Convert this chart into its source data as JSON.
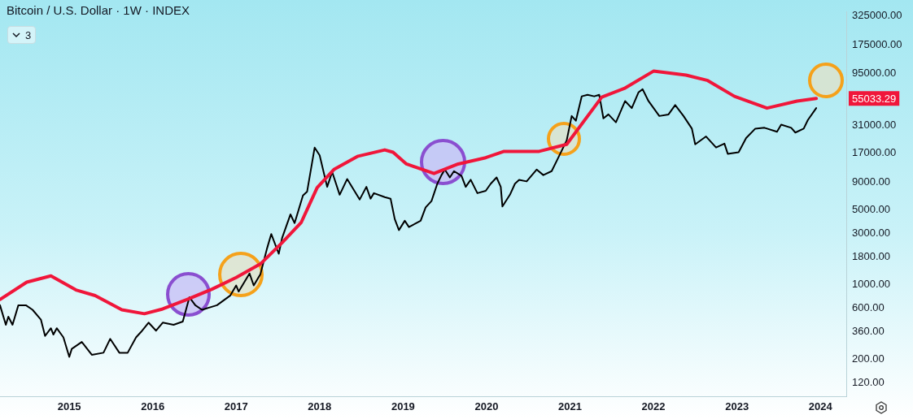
{
  "chart_data": {
    "type": "line",
    "title": "Bitcoin / U.S. Dollar · 1W · INDEX",
    "log": "y",
    "legend": false,
    "marker": "none",
    "line_style": "solid",
    "xlim": [
      2014.17,
      2024.31
    ],
    "xticks": [
      2015,
      2016,
      2017,
      2018,
      2019,
      2020,
      2021,
      2022,
      2023,
      2024
    ],
    "ylim": [
      90,
      355000
    ],
    "yticks": [
      {
        "value": 120,
        "label": "120.00"
      },
      {
        "value": 200,
        "label": "200.00"
      },
      {
        "value": 360,
        "label": "360.00"
      },
      {
        "value": 600,
        "label": "600.00"
      },
      {
        "value": 1000,
        "label": "1000.00"
      },
      {
        "value": 1800,
        "label": "1800.00"
      },
      {
        "value": 3000,
        "label": "3000.00"
      },
      {
        "value": 5000,
        "label": "5000.00"
      },
      {
        "value": 9000,
        "label": "9000.00"
      },
      {
        "value": 17000,
        "label": "17000.00"
      },
      {
        "value": 31000,
        "label": "31000.00"
      },
      {
        "value": 95000,
        "label": "95000.00"
      },
      {
        "value": 175000,
        "label": "175000.00"
      },
      {
        "value": 325000,
        "label": "325000.00"
      }
    ],
    "annotations": [
      "3",
      "55033.29"
    ],
    "series": [
      {
        "color": "#000000",
        "x": [
          2014.17,
          2014.24,
          2014.27,
          2014.32,
          2014.39,
          2014.48,
          2014.56,
          2014.66,
          2014.71,
          2014.78,
          2014.81,
          2014.85,
          2014.93,
          2015.0,
          2015.03,
          2015.15,
          2015.27,
          2015.41,
          2015.49,
          2015.6,
          2015.7,
          2015.8,
          2015.86,
          2015.95,
          2016.04,
          2016.12,
          2016.25,
          2016.36,
          2016.44,
          2016.51,
          2016.59,
          2016.77,
          2016.93,
          2017.0,
          2017.03,
          2017.16,
          2017.21,
          2017.29,
          2017.37,
          2017.42,
          2017.51,
          2017.55,
          2017.65,
          2017.7,
          2017.8,
          2017.85,
          2017.94,
          2018.0,
          2018.09,
          2018.15,
          2018.24,
          2018.33,
          2018.48,
          2018.56,
          2018.61,
          2018.65,
          2018.78,
          2018.85,
          2018.9,
          2018.95,
          2019.02,
          2019.07,
          2019.21,
          2019.27,
          2019.34,
          2019.41,
          2019.46,
          2019.5,
          2019.56,
          2019.61,
          2019.7,
          2019.75,
          2019.81,
          2019.89,
          2019.99,
          2020.05,
          2020.12,
          2020.17,
          2020.19,
          2020.28,
          2020.34,
          2020.39,
          2020.48,
          2020.6,
          2020.68,
          2020.78,
          2020.85,
          2020.96,
          2021.02,
          2021.07,
          2021.14,
          2021.21,
          2021.29,
          2021.35,
          2021.4,
          2021.46,
          2021.55,
          2021.66,
          2021.74,
          2021.82,
          2021.87,
          2021.94,
          2022.07,
          2022.18,
          2022.26,
          2022.36,
          2022.46,
          2022.5,
          2022.63,
          2022.75,
          2022.85,
          2022.89,
          2023.02,
          2023.11,
          2023.22,
          2023.33,
          2023.48,
          2023.53,
          2023.65,
          2023.7,
          2023.8,
          2023.85,
          2023.95
        ],
        "values": [
          640,
          420,
          500,
          420,
          640,
          640,
          580,
          470,
          330,
          390,
          340,
          390,
          320,
          210,
          250,
          290,
          220,
          230,
          310,
          230,
          230,
          320,
          360,
          440,
          370,
          440,
          420,
          450,
          760,
          640,
          580,
          640,
          790,
          980,
          860,
          1270,
          980,
          1250,
          2180,
          2970,
          1940,
          2720,
          4530,
          3760,
          6810,
          7410,
          19100,
          16200,
          8200,
          11300,
          6920,
          9720,
          6250,
          8200,
          6360,
          7160,
          6580,
          6360,
          4090,
          3230,
          3950,
          3450,
          3950,
          5270,
          6040,
          8780,
          10570,
          11910,
          10050,
          11510,
          10400,
          8200,
          9550,
          7160,
          7530,
          8780,
          10050,
          8200,
          5370,
          6920,
          8780,
          9550,
          9230,
          11910,
          10570,
          11510,
          14860,
          22340,
          37760,
          34120,
          57680,
          59700,
          57680,
          59700,
          35910,
          39080,
          32970,
          52120,
          44770,
          62810,
          67300,
          52120,
          37760,
          39080,
          47860,
          37760,
          28770,
          20510,
          24300,
          19150,
          20840,
          16720,
          17280,
          23490,
          28770,
          29300,
          26920,
          31330,
          29300,
          26440,
          28770,
          34670,
          44770
        ]
      },
      {
        "color": "#f0163a",
        "x": [
          2014.17,
          2014.49,
          2014.78,
          2015.08,
          2015.31,
          2015.63,
          2015.9,
          2016.12,
          2016.41,
          2016.71,
          2017.0,
          2017.29,
          2017.55,
          2017.78,
          2017.97,
          2018.17,
          2018.46,
          2018.78,
          2018.88,
          2019.04,
          2019.37,
          2019.66,
          2019.99,
          2020.21,
          2020.63,
          2020.96,
          2021.38,
          2021.65,
          2022.0,
          2022.39,
          2022.65,
          2022.97,
          2023.36,
          2023.72,
          2023.95
        ],
        "values": [
          725,
          1052,
          1205,
          889,
          788,
          581,
          533,
          591,
          725,
          904,
          1164,
          1556,
          2460,
          3820,
          8070,
          11910,
          15890,
          18200,
          17280,
          13430,
          10940,
          13430,
          15380,
          17620,
          17620,
          20510,
          56750,
          68390,
          99300,
          91200,
          81100,
          57680,
          44770,
          52120,
          55033.29
        ]
      }
    ]
  }
}
